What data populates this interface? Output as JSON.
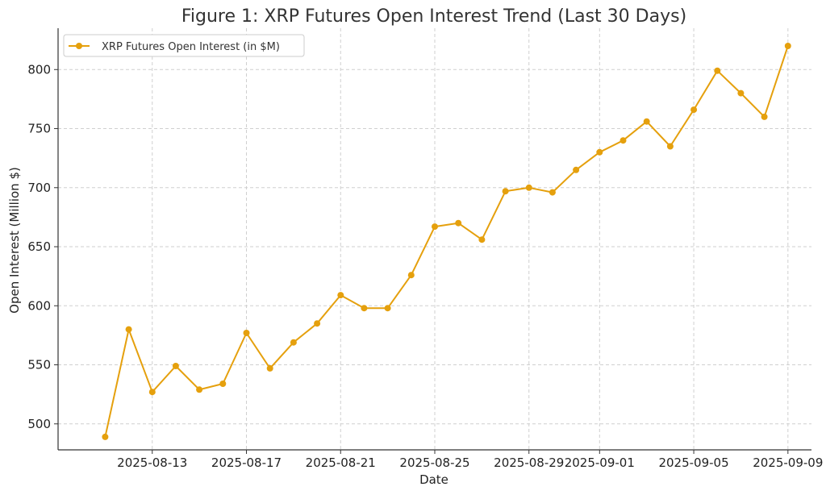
{
  "chart_data": {
    "type": "line",
    "title": "Figure 1: XRP Futures Open Interest Trend (Last 30 Days)",
    "xlabel": "Date",
    "ylabel": "Open Interest (Million $)",
    "ylim": [
      478,
      835
    ],
    "grid": true,
    "legend_position": "top-left",
    "x_ticks": [
      "2025-08-13",
      "2025-08-17",
      "2025-08-21",
      "2025-08-25",
      "2025-08-29",
      "2025-09-01",
      "2025-09-05",
      "2025-09-09"
    ],
    "y_ticks": [
      500,
      550,
      600,
      650,
      700,
      750,
      800
    ],
    "series": [
      {
        "name": "XRP Futures Open Interest (in $M)",
        "color": "#E5A00D",
        "x": [
          "2025-08-11",
          "2025-08-12",
          "2025-08-13",
          "2025-08-14",
          "2025-08-15",
          "2025-08-16",
          "2025-08-17",
          "2025-08-18",
          "2025-08-19",
          "2025-08-20",
          "2025-08-21",
          "2025-08-22",
          "2025-08-23",
          "2025-08-24",
          "2025-08-25",
          "2025-08-26",
          "2025-08-27",
          "2025-08-28",
          "2025-08-29",
          "2025-08-30",
          "2025-08-31",
          "2025-09-01",
          "2025-09-02",
          "2025-09-03",
          "2025-09-04",
          "2025-09-05",
          "2025-09-06",
          "2025-09-07",
          "2025-09-08",
          "2025-09-09"
        ],
        "values": [
          489,
          580,
          527,
          549,
          529,
          534,
          577,
          547,
          569,
          585,
          609,
          598,
          598,
          626,
          667,
          670,
          656,
          697,
          700,
          696,
          715,
          730,
          740,
          756,
          735,
          766,
          799,
          780,
          760,
          820
        ]
      }
    ]
  }
}
